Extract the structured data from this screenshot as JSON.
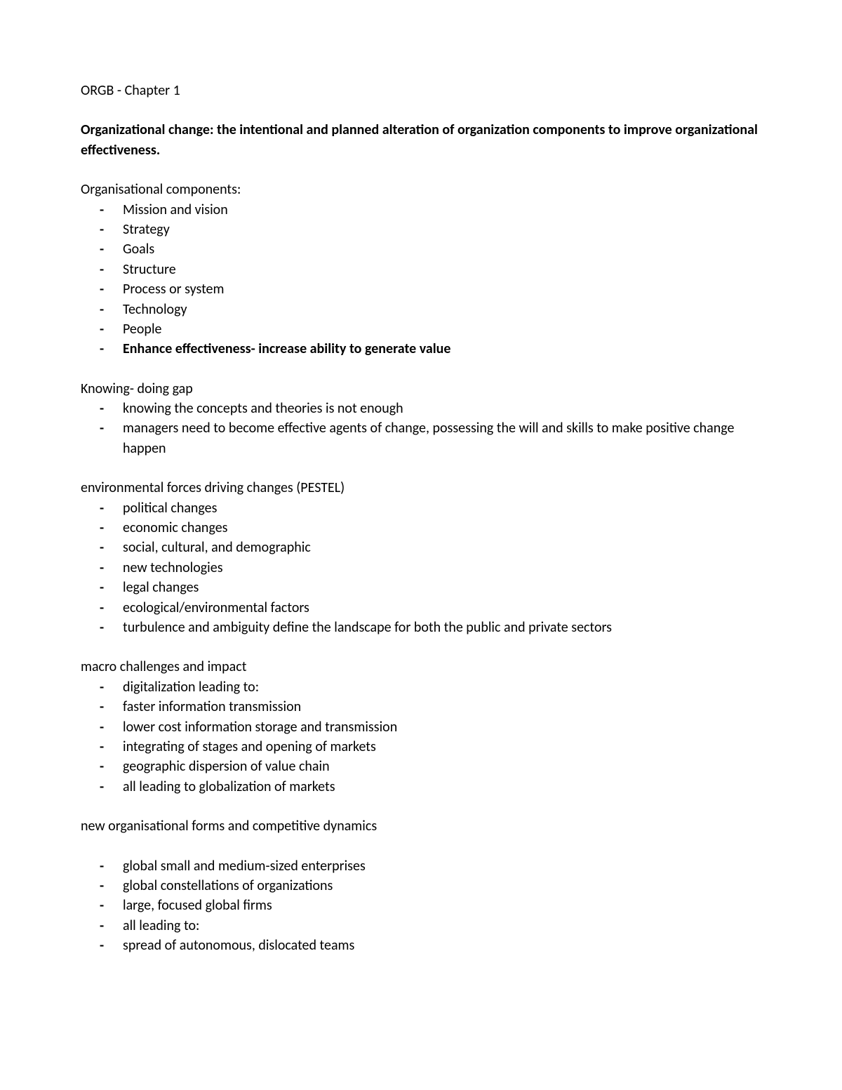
{
  "title": "ORGB - Chapter 1",
  "intro_bold": "Organizational change:",
  "intro_rest": "  the intentional and planned alteration of organization components to improve organizational effectiveness.",
  "sections": [
    {
      "heading": "Organisational components:",
      "items": [
        {
          "text": "Mission and vision",
          "bold": false
        },
        {
          "text": "Strategy",
          "bold": false
        },
        {
          "text": "Goals",
          "bold": false
        },
        {
          "text": "Structure",
          "bold": false
        },
        {
          "text": "Process or system",
          "bold": false
        },
        {
          "text": "Technology",
          "bold": false
        },
        {
          "text": "People",
          "bold": false
        },
        {
          "text": "Enhance effectiveness- increase ability to generate value",
          "bold": true
        }
      ]
    },
    {
      "heading": "Knowing- doing gap",
      "items": [
        {
          "text": "knowing the concepts and theories is not enough",
          "bold": false
        },
        {
          "text": "managers need to become effective agents of change, possessing the will and skills to make positive change happen",
          "bold": false
        }
      ]
    },
    {
      "heading": "environmental forces driving changes (PESTEL)",
      "items": [
        {
          "text": "political changes",
          "bold": false
        },
        {
          "text": "economic changes",
          "bold": false
        },
        {
          "text": "social, cultural, and demographic",
          "bold": false
        },
        {
          "text": "new technologies",
          "bold": false
        },
        {
          "text": "legal changes",
          "bold": false
        },
        {
          "text": "ecological/environmental factors",
          "bold": false
        },
        {
          "text": "turbulence and ambiguity define the landscape for both the public and private sectors",
          "bold": false
        }
      ]
    },
    {
      "heading": "macro challenges and impact",
      "items": [
        {
          "text": "digitalization leading to:",
          "bold": false
        },
        {
          "text": "faster information transmission",
          "bold": false
        },
        {
          "text": "lower cost information storage and transmission",
          "bold": false
        },
        {
          "text": "integrating of stages and opening of markets",
          "bold": false
        },
        {
          "text": "geographic dispersion of value chain",
          "bold": false
        },
        {
          "text": "all leading to globalization of markets",
          "bold": false
        }
      ]
    },
    {
      "heading": "new organisational forms and competitive dynamics",
      "gap_after_heading": true,
      "items": [
        {
          "text": "global small and medium-sized enterprises",
          "bold": false
        },
        {
          "text": "global constellations of organizations",
          "bold": false
        },
        {
          "text": "large, focused global firms",
          "bold": false
        },
        {
          "text": "all leading to:",
          "bold": false
        },
        {
          "text": "spread of autonomous, dislocated teams",
          "bold": false
        }
      ]
    }
  ]
}
